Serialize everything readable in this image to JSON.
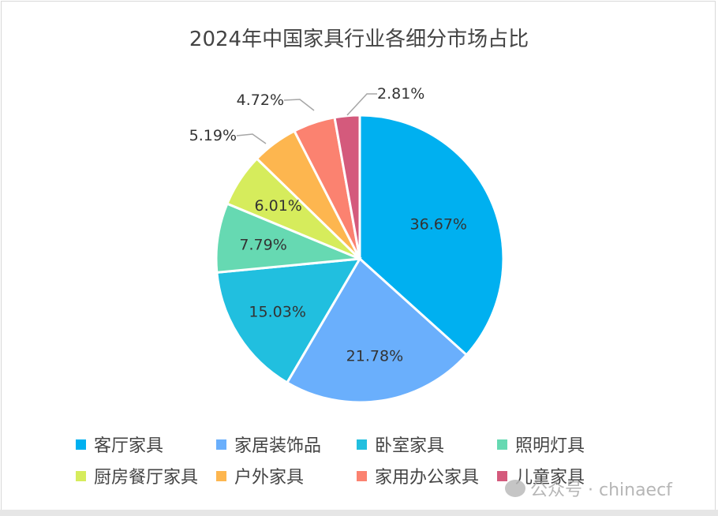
{
  "chart_data": {
    "type": "pie",
    "title": "2024年中国家具行业各细分市场占比",
    "categories": [
      "客厅家具",
      "家居装饰品",
      "卧室家具",
      "照明灯具",
      "厨房餐厅家具",
      "户外家具",
      "家用办公家具",
      "儿童家具"
    ],
    "values": [
      36.67,
      21.78,
      15.03,
      7.79,
      6.01,
      5.19,
      4.72,
      2.81
    ],
    "labels": [
      "36.67%",
      "21.78%",
      "15.03%",
      "7.79%",
      "6.01%",
      "5.19%",
      "4.72%",
      "2.81%"
    ],
    "colors": [
      "#00B0F0",
      "#6AAFFC",
      "#21BFDF",
      "#66D9B2",
      "#D6EC5C",
      "#FDB64F",
      "#FB8270",
      "#D45A7C"
    ],
    "legend_position": "bottom",
    "start_angle": "top, clockwise"
  },
  "watermark": "公众号 · chinaecf"
}
